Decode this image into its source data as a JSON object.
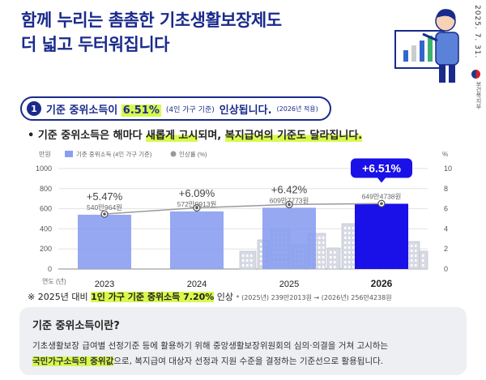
{
  "header": {
    "title_line1": "함께 누리는 촘촘한 기초생활보장제도",
    "title_line2": "더 넓고 두터워집니다",
    "date": "2025. 7. 31.",
    "ministry": "보건복지부"
  },
  "headline": {
    "number": "1",
    "prefix": "기준 중위소득이 ",
    "highlight": "6.51%",
    "paren": "(4인 가구 기준)",
    "suffix": " 인상됩니다.",
    "note": "(2026년 적용)"
  },
  "subhead": {
    "bullet": "•",
    "text1": "기준 중위소득은 해마다 ",
    "hl1": "새롭게 고시",
    "text2": "되며, ",
    "hl2": "복지급여의 기준도 달라집니다."
  },
  "chart_data": {
    "type": "bar",
    "categories": [
      "2023",
      "2024",
      "2025",
      "2026"
    ],
    "series": [
      {
        "name": "기준 중위소득 (4인 가구 기준)",
        "values": [
          540.0964,
          572.9913,
          609.7773,
          649.4738
        ],
        "color": "#8a9ef0",
        "highlight_color": "#1a10e8"
      },
      {
        "name": "인상률 (%)",
        "values": [
          5.47,
          6.09,
          6.42,
          6.51
        ],
        "type": "line",
        "color": "#9a9a9a"
      }
    ],
    "bar_labels": [
      "540만964원",
      "572만9913원",
      "609만7773원",
      "649만4738원"
    ],
    "rate_labels": [
      "+5.47%",
      "+6.09%",
      "+6.42%",
      "+6.51%"
    ],
    "ylabel_left": "만원",
    "ylabel_right": "%",
    "xlabel": "연도 (년)",
    "ylim_left": [
      0,
      1000
    ],
    "yticks_left": [
      "0",
      "200",
      "400",
      "600",
      "800",
      "1000"
    ],
    "ylim_right": [
      0,
      10
    ],
    "yticks_right": [
      "0",
      "2",
      "4",
      "6",
      "8",
      "10"
    ],
    "grid": true,
    "legend": "top-left"
  },
  "footnote": {
    "mark": "※",
    "text1": "2025년 대비 ",
    "hl": "1인 가구 기준 중위소득 7.20%",
    "text2": " 인상",
    "small": "* (2025년) 239만2013원 → (2026년) 256만4238원"
  },
  "infobox": {
    "title": "기준 중위소득이란?",
    "line1": "기초생활보장 급여별 선정기준 등에 활용하기 위해 중앙생활보장위원회의 심의·의결을 거쳐 고시하는",
    "line2_hl": "국민가구소득의 중위값",
    "line2_rest": "으로, 복지급여 대상자 선정과 지원 수준을 결정하는 기준선으로 활용됩니다."
  }
}
